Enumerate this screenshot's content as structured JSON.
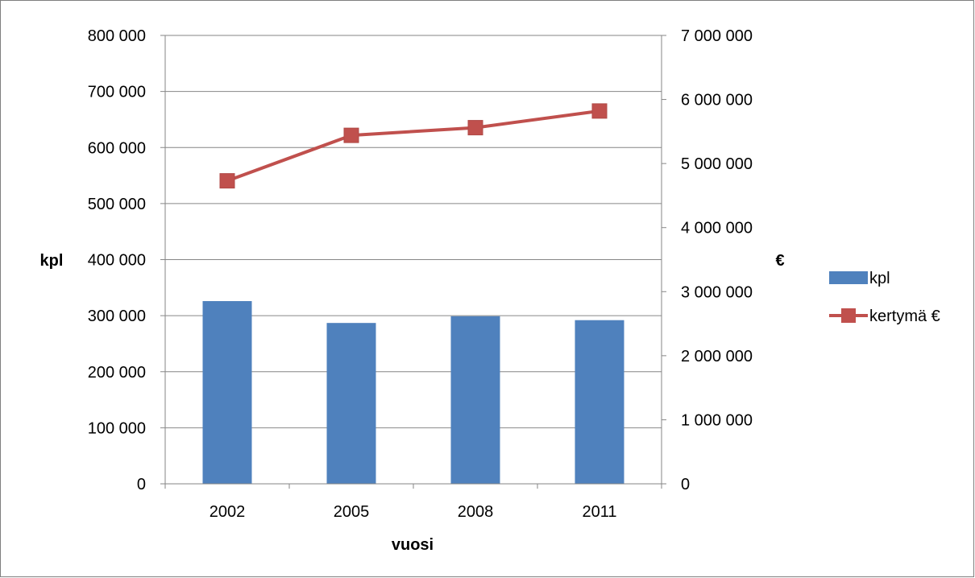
{
  "chart_data": {
    "type": "bar",
    "categories": [
      "2002",
      "2005",
      "2008",
      "2011"
    ],
    "series": [
      {
        "name": "kpl",
        "kind": "bar",
        "axis": "left",
        "color": "#4f81bd",
        "values": [
          326000,
          287000,
          299000,
          292000
        ]
      },
      {
        "name": "kertymä €",
        "kind": "line",
        "axis": "right",
        "color": "#c0504d",
        "values": [
          4730000,
          5440000,
          5560000,
          5820000
        ]
      }
    ],
    "xlabel": "vuosi",
    "ylabel": "kpl",
    "y2label": "€",
    "ylim": [
      0,
      800000
    ],
    "y2lim": [
      0,
      7000000
    ],
    "y_ticks": [
      "0",
      "100 000",
      "200 000",
      "300 000",
      "400 000",
      "500 000",
      "600 000",
      "700 000",
      "800 000"
    ],
    "y2_ticks": [
      "0",
      "1 000 000",
      "2 000 000",
      "3 000 000",
      "4 000 000",
      "5 000 000",
      "6 000 000",
      "7 000 000"
    ],
    "grid": true,
    "legend_position": "right"
  }
}
